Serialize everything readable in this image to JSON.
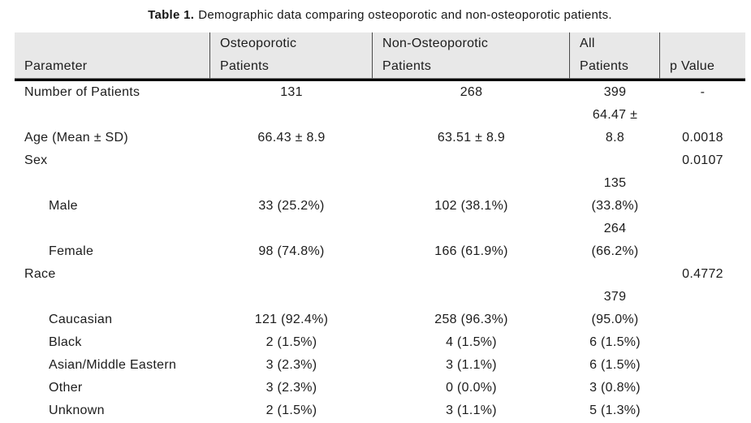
{
  "caption": {
    "label": "Table 1.",
    "text": "Demographic data comparing osteoporotic and non-osteoporotic patients."
  },
  "table": {
    "columns": [
      {
        "label": "Parameter"
      },
      {
        "label": "Osteoporotic\nPatients"
      },
      {
        "label": "Non-Osteoporotic\nPatients"
      },
      {
        "label": "All\nPatients"
      },
      {
        "label": "p Value"
      }
    ],
    "rows": [
      {
        "parameter": "Number of Patients",
        "indent": false,
        "osteoporotic": "131",
        "non_osteoporotic": "268",
        "all_patients": "399",
        "p_value": "-"
      },
      {
        "parameter": "Age (Mean ± SD)",
        "indent": false,
        "osteoporotic": "66.43 ± 8.9",
        "non_osteoporotic": "63.51 ± 8.9",
        "all_patients": "64.47 ±\n8.8",
        "p_value": "0.0018"
      },
      {
        "parameter": "Sex",
        "indent": false,
        "osteoporotic": "",
        "non_osteoporotic": "",
        "all_patients": "",
        "p_value": "0.0107"
      },
      {
        "parameter": "Male",
        "indent": true,
        "osteoporotic": "33 (25.2%)",
        "non_osteoporotic": "102 (38.1%)",
        "all_patients": "135\n(33.8%)",
        "p_value": ""
      },
      {
        "parameter": "Female",
        "indent": true,
        "osteoporotic": "98 (74.8%)",
        "non_osteoporotic": "166 (61.9%)",
        "all_patients": "264\n(66.2%)",
        "p_value": ""
      },
      {
        "parameter": "Race",
        "indent": false,
        "osteoporotic": "",
        "non_osteoporotic": "",
        "all_patients": "",
        "p_value": "0.4772"
      },
      {
        "parameter": "Caucasian",
        "indent": true,
        "osteoporotic": "121 (92.4%)",
        "non_osteoporotic": "258 (96.3%)",
        "all_patients": "379\n(95.0%)",
        "p_value": ""
      },
      {
        "parameter": "Black",
        "indent": true,
        "osteoporotic": "2 (1.5%)",
        "non_osteoporotic": "4 (1.5%)",
        "all_patients": "6 (1.5%)",
        "p_value": ""
      },
      {
        "parameter": "Asian/Middle Eastern",
        "indent": true,
        "osteoporotic": "3 (2.3%)",
        "non_osteoporotic": "3 (1.1%)",
        "all_patients": "6 (1.5%)",
        "p_value": ""
      },
      {
        "parameter": "Other",
        "indent": true,
        "osteoporotic": "3 (2.3%)",
        "non_osteoporotic": "0 (0.0%)",
        "all_patients": "3 (0.8%)",
        "p_value": ""
      },
      {
        "parameter": "Unknown",
        "indent": true,
        "osteoporotic": "2 (1.5%)",
        "non_osteoporotic": "3 (1.1%)",
        "all_patients": "5 (1.3%)",
        "p_value": ""
      }
    ]
  },
  "colors": {
    "header_bg": "#e8e8e8",
    "text": "#1c1c1c",
    "heavy_rule": "#000000",
    "header_divider": "#4a4a4a"
  }
}
